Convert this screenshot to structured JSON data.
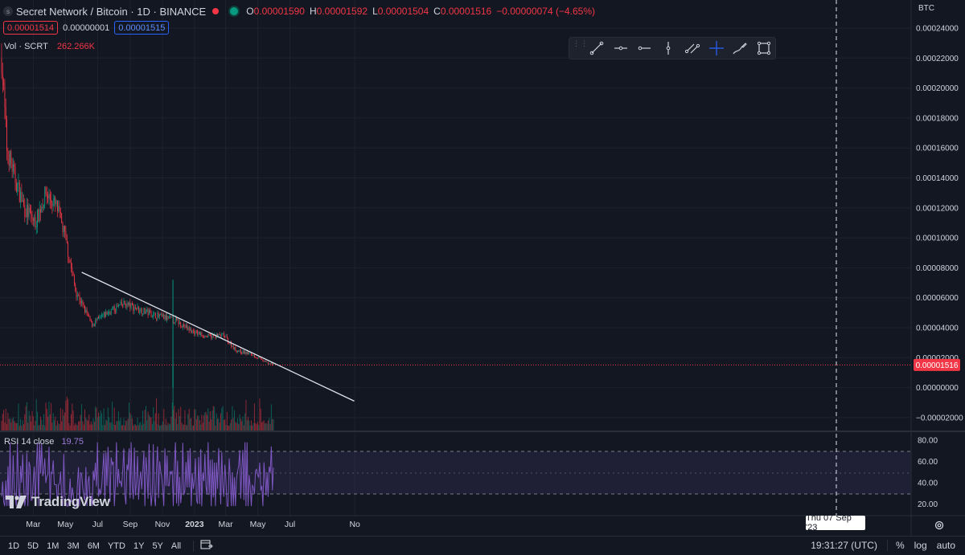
{
  "header": {
    "symbol_title": "Secret Network / Bitcoin · 1D · BINANCE",
    "symbol_icon_letter": "s",
    "ohlc": [
      {
        "k": "O",
        "v": "0.00001590"
      },
      {
        "k": "H",
        "v": "0.00001592"
      },
      {
        "k": "L",
        "v": "0.00001504"
      },
      {
        "k": "C",
        "v": "0.00001516"
      },
      {
        "k": "",
        "v": "−0.00000074 (−4.65%)"
      }
    ],
    "bid": "0.00001514",
    "spread": "0.00000001",
    "ask": "0.00001515"
  },
  "volume_legend": {
    "label": "Vol · SCRT",
    "value": "262.266K"
  },
  "rsi_legend": {
    "label": "RSI 14 close",
    "value": "19.75"
  },
  "currency": "BTC",
  "price_axis": {
    "ticks": [
      "0.00024000",
      "0.00022000",
      "0.00020000",
      "0.00018000",
      "0.00016000",
      "0.00014000",
      "0.00012000",
      "0.00010000",
      "0.00008000",
      "0.00006000",
      "0.00004000",
      "0.00002000",
      "0.00000000",
      "−0.00002000"
    ],
    "last_price": "0.00001516",
    "last_price_color": "#f23645"
  },
  "rsi_axis": {
    "ticks": [
      "80.00",
      "60.00",
      "40.00",
      "20.00"
    ]
  },
  "time_axis": {
    "ticks": [
      "Mar",
      "May",
      "Jul",
      "Sep",
      "Nov",
      "2023",
      "Mar",
      "May",
      "Jul",
      "No"
    ]
  },
  "crosshair_date": "Thu 07 Sep '23",
  "logo_text": "TradingView",
  "drawing_tools": [
    "trend-line-icon",
    "ray-icon",
    "horizontal-line-icon",
    "vertical-line-icon",
    "parallel-channel-icon",
    "crosshair-icon",
    "brush-icon",
    "rectangle-icon"
  ],
  "range_buttons": [
    "1D",
    "5D",
    "1M",
    "3M",
    "6M",
    "YTD",
    "1Y",
    "5Y",
    "All"
  ],
  "footer": {
    "clock": "19:31:27 (UTC)",
    "percent": "%",
    "log": "log",
    "auto": "auto"
  },
  "colors": {
    "up": "#089981",
    "down": "#f23645",
    "rsi": "#7e57c2",
    "accent": "#2962ff"
  },
  "chart_data": {
    "type": "candlestick",
    "title": "Secret Network / Bitcoin · 1D · BINANCE",
    "x_range": [
      "2022-01",
      "2023-06"
    ],
    "ylim": [
      -2e-05,
      0.00024
    ],
    "trend_points": [
      {
        "date": "2021-12-31",
        "price": 0.00022
      },
      {
        "date": "2022-01-10",
        "price": 0.00016
      },
      {
        "date": "2022-01-25",
        "price": 0.00014
      },
      {
        "date": "2022-02-12",
        "price": 0.00012
      },
      {
        "date": "2022-03-05",
        "price": 0.00011
      },
      {
        "date": "2022-03-25",
        "price": 0.00013
      },
      {
        "date": "2022-04-15",
        "price": 0.00012
      },
      {
        "date": "2022-05-01",
        "price": 0.0001
      },
      {
        "date": "2022-05-20",
        "price": 6.5e-05
      },
      {
        "date": "2022-06-20",
        "price": 4.2e-05
      },
      {
        "date": "2022-07-20",
        "price": 5e-05
      },
      {
        "date": "2022-08-20",
        "price": 5.6e-05
      },
      {
        "date": "2022-09-20",
        "price": 5.2e-05
      },
      {
        "date": "2022-10-20",
        "price": 4.8e-05
      },
      {
        "date": "2022-11-25",
        "price": 4.5e-05
      },
      {
        "date": "2022-12-25",
        "price": 3.8e-05
      },
      {
        "date": "2023-01-25",
        "price": 3.4e-05
      },
      {
        "date": "2023-02-25",
        "price": 3.5e-05
      },
      {
        "date": "2023-03-20",
        "price": 2.5e-05
      },
      {
        "date": "2023-04-20",
        "price": 2.2e-05
      },
      {
        "date": "2023-05-15",
        "price": 1.7e-05
      },
      {
        "date": "2023-06-01",
        "price": 1.516e-05
      }
    ],
    "trendline": {
      "from_date": "2022-06-01",
      "from_price": 7.7e-05,
      "to_date": "2023-10-31",
      "to_price": -9e-06
    },
    "rsi_bands": [
      30,
      50,
      70
    ],
    "rsi_last": 19.75,
    "volume_last": "262.266K"
  }
}
